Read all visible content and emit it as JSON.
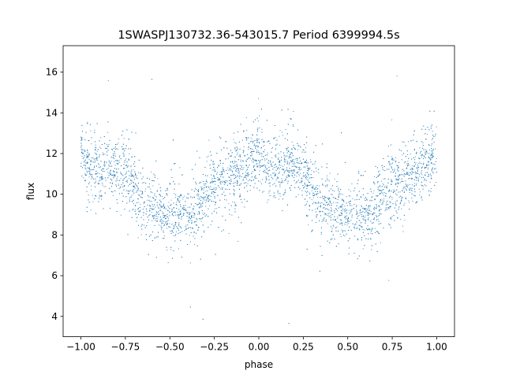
{
  "chart_data": {
    "type": "scatter",
    "title": "1SWASPJ130732.36-543015.7 Period 6399994.5s",
    "xlabel": "phase",
    "ylabel": "flux",
    "xlim": [
      -1.1,
      1.1
    ],
    "ylim": [
      3.0,
      17.3
    ],
    "xticks": [
      -1.0,
      -0.75,
      -0.5,
      -0.25,
      0.0,
      0.25,
      0.5,
      0.75,
      1.0
    ],
    "xtick_labels": [
      "−1.00",
      "−0.75",
      "−0.50",
      "−0.25",
      "0.00",
      "0.25",
      "0.50",
      "0.75",
      "1.00"
    ],
    "yticks": [
      4,
      6,
      8,
      10,
      12,
      14,
      16
    ],
    "ytick_labels": [
      "4",
      "6",
      "8",
      "10",
      "12",
      "14",
      "16"
    ],
    "marker_color": "#1f77b4",
    "grid": false,
    "series": [
      {
        "phase_range": [
          -1.0,
          1.0
        ],
        "profile_phase": [
          0.0,
          0.05,
          0.1,
          0.15,
          0.2,
          0.25,
          0.3,
          0.35,
          0.4,
          0.45,
          0.5,
          0.55,
          0.6,
          0.65,
          0.7,
          0.75,
          0.8,
          0.85,
          0.9,
          0.95,
          1.0
        ],
        "profile_flux": [
          12.0,
          11.3,
          11.2,
          11.3,
          11.4,
          11.0,
          10.3,
          9.6,
          9.4,
          9.1,
          9.0,
          9.0,
          9.0,
          9.3,
          9.8,
          10.4,
          10.7,
          11.0,
          11.3,
          11.6,
          12.0
        ],
        "scatter_std": 1.0,
        "outlier_range": [
          3.5,
          16.5
        ]
      }
    ]
  }
}
